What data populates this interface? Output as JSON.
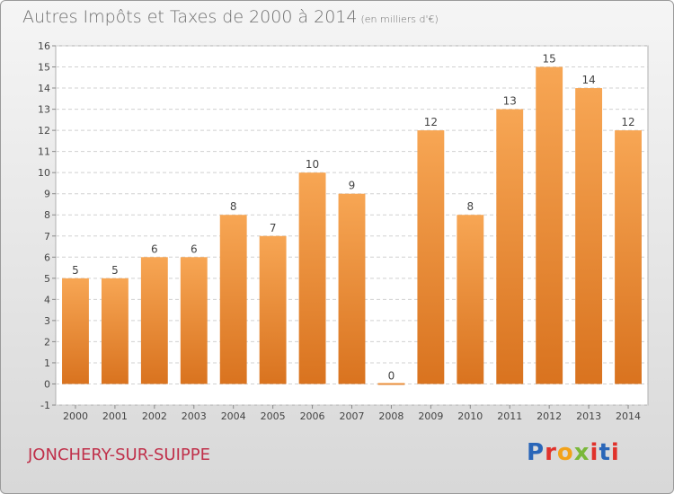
{
  "chart_title": "Autres Impôts et Taxes de 2000 à 2014",
  "chart_unit": "(en milliers d'€)",
  "town_name": "JONCHERY-SUR-SUIPPE",
  "logo_text": "Proxiti",
  "logo_colors": [
    "#2a66b8",
    "#e0322b",
    "#f2a21a",
    "#7ab83a",
    "#e0322b",
    "#2a66b8",
    "#e0322b"
  ],
  "colors": {
    "bar_top": "#f7a654",
    "bar_bottom": "#d9731f",
    "grid": "#d0d0d0",
    "axis_text": "#444444"
  },
  "chart_data": {
    "type": "bar",
    "categories": [
      "2000",
      "2001",
      "2002",
      "2003",
      "2004",
      "2005",
      "2006",
      "2007",
      "2008",
      "2009",
      "2010",
      "2011",
      "2012",
      "2013",
      "2014"
    ],
    "values": [
      5,
      5,
      6,
      6,
      8,
      7,
      10,
      9,
      0,
      12,
      8,
      13,
      15,
      14,
      12
    ],
    "data_labels": [
      "5",
      "5",
      "6",
      "6",
      "8",
      "7",
      "10",
      "9",
      "0",
      "12",
      "8",
      "13",
      "15",
      "14",
      "12"
    ],
    "y_ticks": [
      "-1",
      "0",
      "1",
      "2",
      "3",
      "4",
      "5",
      "6",
      "7",
      "8",
      "9",
      "10",
      "11",
      "12",
      "13",
      "14",
      "15",
      "16"
    ],
    "ylim": [
      -1,
      16
    ],
    "grid": true
  }
}
